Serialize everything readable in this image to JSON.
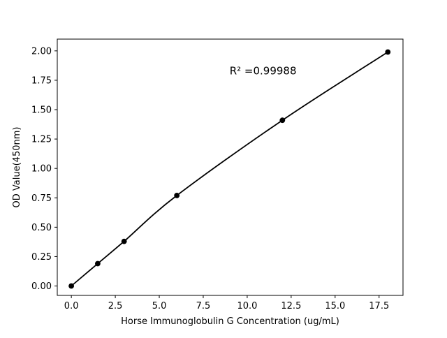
{
  "figure": {
    "background": "#ffffff"
  },
  "chart_data": {
    "type": "scatter",
    "title": "",
    "xlabel": "Horse Immunoglobulin G Concentration (ug/mL)",
    "ylabel": "OD Value(450nm)",
    "x": [
      0,
      1.5,
      3,
      6,
      12,
      18
    ],
    "y": [
      0.0,
      0.19,
      0.38,
      0.77,
      1.41,
      1.99
    ],
    "series": [
      {
        "name": "standard-curve-fit",
        "style": "smooth-line"
      },
      {
        "name": "standard-points",
        "style": "filled-circle-markers"
      }
    ],
    "annotation": {
      "text": "R² =0.99988",
      "x": 9,
      "y": 1.8
    },
    "xticks": [
      0.0,
      2.5,
      5.0,
      7.5,
      10.0,
      12.5,
      15.0,
      17.5
    ],
    "xtick_labels": [
      "0.0",
      "2.5",
      "5.0",
      "7.5",
      "10.0",
      "12.5",
      "15.0",
      "17.5"
    ],
    "yticks": [
      0.0,
      0.25,
      0.5,
      0.75,
      1.0,
      1.25,
      1.5,
      1.75,
      2.0
    ],
    "ytick_labels": [
      "0.00",
      "0.25",
      "0.50",
      "0.75",
      "1.00",
      "1.25",
      "1.50",
      "1.75",
      "2.00"
    ],
    "xlim": [
      -0.8,
      18.86
    ],
    "ylim": [
      -0.08,
      2.1
    ],
    "grid": false,
    "legend": null,
    "line_color": "#000000",
    "marker_color": "#000000",
    "axis_color": "#000000",
    "background": "#ffffff"
  }
}
